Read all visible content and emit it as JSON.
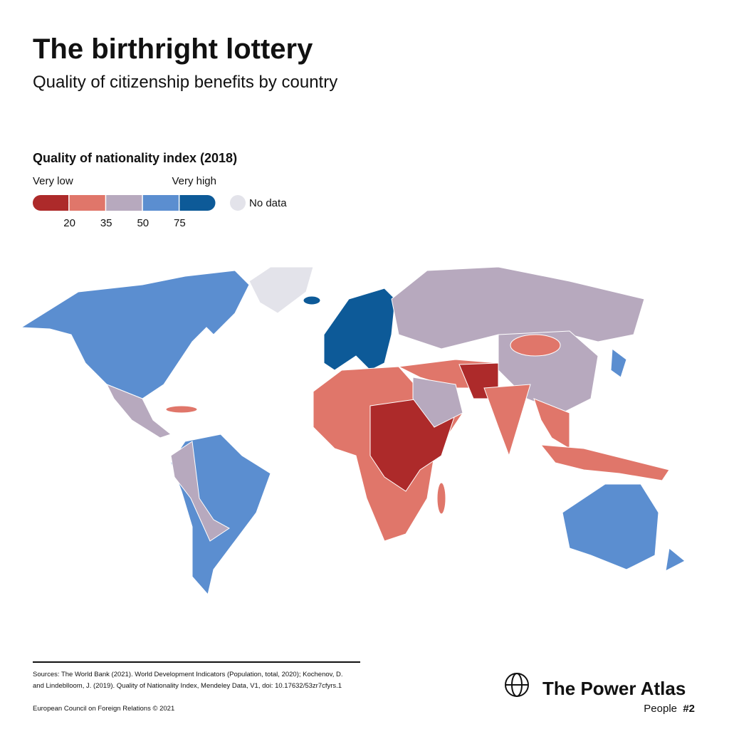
{
  "header": {
    "title": "The birthright lottery",
    "subtitle": "Quality of citizenship benefits by country"
  },
  "legend": {
    "title": "Quality of nationality index (2018)",
    "low_label": "Very low",
    "high_label": "Very high",
    "colors": [
      "#ad2a2a",
      "#e0766a",
      "#b7a9be",
      "#5b8ed0",
      "#0d5a98"
    ],
    "breaks": [
      20,
      35,
      50,
      75
    ],
    "no_data_label": "No data",
    "no_data_color": "#e3e3ea"
  },
  "footer": {
    "sources": [
      "Sources: The World Bank (2021). World Development Indicators (Population, total, 2020); Kochenov, D.",
      "and Lindeblloom, J. (2019). Quality of Nationality Index, Mendeley Data, V1, doi: 10.17632/53zr7cfyrs.1"
    ],
    "copyright": "European Council on Foreign Relations © 2021",
    "brand": "The Power Atlas",
    "series": "People",
    "number": "#2"
  }
}
